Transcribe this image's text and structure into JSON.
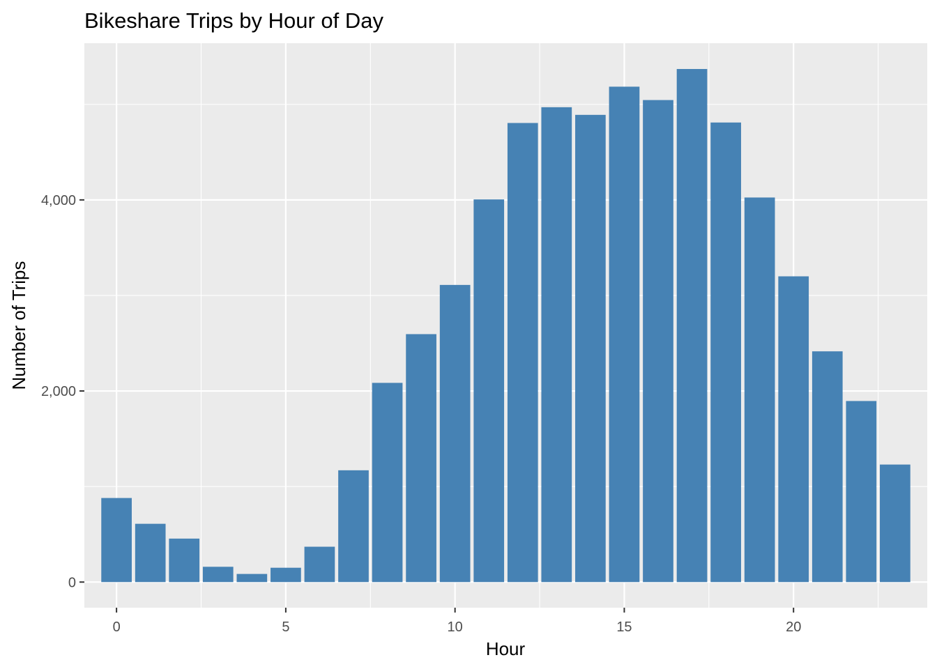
{
  "chart_data": {
    "type": "bar",
    "title": "Bikeshare Trips by Hour of Day",
    "xlabel": "Hour",
    "ylabel": "Number of Trips",
    "x": [
      0,
      1,
      2,
      3,
      4,
      5,
      6,
      7,
      8,
      9,
      10,
      11,
      12,
      13,
      14,
      15,
      16,
      17,
      18,
      19,
      20,
      21,
      22,
      23
    ],
    "values": [
      880,
      610,
      455,
      160,
      85,
      150,
      370,
      1170,
      2085,
      2595,
      3110,
      4005,
      4805,
      4970,
      4890,
      5185,
      5045,
      5370,
      4810,
      4025,
      3200,
      2415,
      1895,
      1230
    ],
    "xlim": [
      -0.95,
      23.95
    ],
    "ylim": [
      -268,
      5640
    ],
    "x_ticks": [
      0,
      5,
      10,
      15,
      20
    ],
    "x_tick_labels": [
      "0",
      "5",
      "10",
      "15",
      "20"
    ],
    "y_ticks": [
      0,
      2000,
      4000
    ],
    "y_tick_labels": [
      "0",
      "2,000",
      "4,000"
    ],
    "bar_color": "#4682B4",
    "panel_color": "#EBEBEB",
    "grid_color": "#FFFFFF",
    "grid": true,
    "legend": "none"
  }
}
